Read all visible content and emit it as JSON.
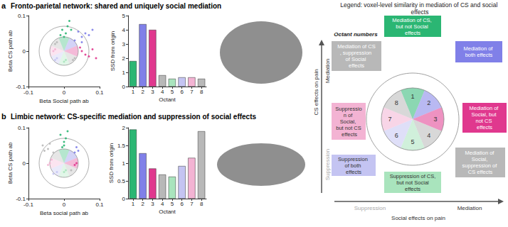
{
  "panels": [
    {
      "letter": "a",
      "title": "Fronto-parietal network: shared and uniquely social mediation"
    },
    {
      "letter": "b",
      "title": "Limbic network: CS-specific mediation and suppression of social effects"
    }
  ],
  "chart_data": [
    {
      "type": "scatter",
      "x_label": "Beta Social path ab",
      "y_label": "Beta CS path ab",
      "xlim": [
        -0.1,
        0.1
      ],
      "xticks": [
        -0.1,
        0,
        0.1
      ],
      "ylim": [
        -0.1,
        0.1
      ],
      "yticks": [
        -0.1,
        0,
        0.1
      ],
      "grid": false,
      "circles": [
        0.04,
        0.07
      ],
      "series": [
        {
          "color": "#2bb673",
          "x": [
            0.005,
            0.01,
            -0.005,
            0.015,
            0,
            0.02,
            -0.01
          ],
          "y": [
            0.05,
            0.07,
            0.06,
            0.085,
            0.04,
            0.06,
            0.045
          ]
        },
        {
          "color": "#8080e8",
          "x": [
            0.03,
            0.05,
            0.06,
            0.07,
            0.04,
            0.08,
            0.05
          ],
          "y": [
            0.03,
            0.04,
            0.05,
            0.045,
            0.055,
            0.06,
            0.025
          ]
        },
        {
          "color": "#e0388e",
          "x": [
            0.05,
            0.06,
            0.08,
            0.09,
            0.07,
            0.045
          ],
          "y": [
            0,
            -0.01,
            0.005,
            -0.02,
            -0.015,
            0.01
          ]
        },
        {
          "color": "#b8b8b8",
          "x": [
            0.025,
            0.03
          ],
          "y": [
            -0.025,
            -0.02
          ]
        },
        {
          "color": "#a9e4bd",
          "x": [
            0,
            0.005
          ],
          "y": [
            -0.03,
            -0.025
          ]
        },
        {
          "color": "#c4c4f2",
          "x": [
            -0.02,
            -0.025
          ],
          "y": [
            -0.02,
            -0.025
          ]
        },
        {
          "color": "#f3b3d3",
          "x": [
            -0.03,
            -0.025
          ],
          "y": [
            0,
            0.005
          ]
        },
        {
          "color": "#b8b8b8",
          "x": [
            -0.02,
            -0.025
          ],
          "y": [
            0.025,
            0.02
          ]
        }
      ]
    },
    {
      "type": "bar",
      "x_label": "Octant",
      "y_label": "SSD from origin",
      "categories": [
        "1",
        "2",
        "3",
        "4",
        "5",
        "6",
        "7",
        "8"
      ],
      "values": [
        1.8,
        4.4,
        4.0,
        0.8,
        0.55,
        0.65,
        0.65,
        0.55
      ],
      "colors": [
        "#2bb673",
        "#8080e8",
        "#e0388e",
        "#b8b8b8",
        "#a9e4bd",
        "#c4c4f2",
        "#f3b3d3",
        "#b8b8b8"
      ],
      "ylim": [
        0,
        5
      ],
      "yticks": [
        0,
        1,
        2,
        3,
        4,
        5
      ],
      "grid": false
    },
    {
      "type": "scatter",
      "x_label": "Beta social path ab",
      "y_label": "Beta CS path ab",
      "xlim": [
        -0.1,
        0.1
      ],
      "xticks": [
        -0.1,
        0,
        0.1
      ],
      "ylim": [
        -0.1,
        0.1
      ],
      "yticks": [
        -0.1,
        0,
        0.1
      ],
      "grid": false,
      "circles": [
        0.04,
        0.07
      ],
      "series": [
        {
          "color": "#2bb673",
          "x": [
            0,
            0.005,
            -0.01,
            0.01,
            0,
            -0.005
          ],
          "y": [
            0.05,
            0.07,
            0.08,
            0.09,
            0.06,
            0.045
          ]
        },
        {
          "color": "#8080e8",
          "x": [
            0.03,
            0.04,
            0.035
          ],
          "y": [
            0.03,
            0.035,
            0.045
          ]
        },
        {
          "color": "#e0388e",
          "x": [
            0.035,
            0.03
          ],
          "y": [
            0,
            -0.005
          ]
        },
        {
          "color": "#b8b8b8",
          "x": [
            0.02
          ],
          "y": [
            -0.02
          ]
        },
        {
          "color": "#a9e4bd",
          "x": [
            0,
            0.005
          ],
          "y": [
            -0.025,
            -0.02
          ]
        },
        {
          "color": "#c4c4f2",
          "x": [
            -0.02,
            -0.03
          ],
          "y": [
            -0.025,
            -0.03
          ]
        },
        {
          "color": "#f3b3d3",
          "x": [
            -0.04,
            -0.035,
            -0.045
          ],
          "y": [
            0,
            0.01,
            -0.005
          ]
        },
        {
          "color": "#b8b8b8",
          "x": [
            -0.03,
            -0.045,
            -0.06,
            -0.04,
            -0.055
          ],
          "y": [
            0.03,
            0.04,
            0.05,
            0.055,
            0.035
          ]
        }
      ]
    },
    {
      "type": "bar",
      "x_label": "Octant",
      "y_label": "SSD from origin",
      "categories": [
        "1",
        "2",
        "3",
        "4",
        "5",
        "6",
        "7",
        "8"
      ],
      "values": [
        1.95,
        1.28,
        0.85,
        0.68,
        0.62,
        0.92,
        1.15,
        1.9
      ],
      "colors": [
        "#2bb673",
        "#8080e8",
        "#e0388e",
        "#b8b8b8",
        "#a9e4bd",
        "#c4c4f2",
        "#f3b3d3",
        "#b8b8b8"
      ],
      "ylim": [
        0,
        2
      ],
      "yticks": [
        0,
        0.5,
        1,
        1.5,
        2
      ],
      "grid": false
    }
  ],
  "legend_diagram": {
    "title": "Legend: voxel-level similarity in mediation of CS and social effects",
    "octant_numbers_label": "Octant numbers",
    "octants": [
      {
        "number": 1,
        "label": "Mediation of CS, but not Social effects",
        "color": "#2bb673"
      },
      {
        "number": 2,
        "label": "Mediation of both effects",
        "color": "#8080e8"
      },
      {
        "number": 3,
        "label": "Mediation of Social, but not CS effects",
        "color": "#e0388e"
      },
      {
        "number": 4,
        "label": "Mediation of Social, suppression of CS effects",
        "color": "#b8b8b8"
      },
      {
        "number": 5,
        "label": "Suppression of CS, but not Social effects",
        "color": "#a9e4bd"
      },
      {
        "number": 6,
        "label": "Suppression of both effects",
        "color": "#c4c4f2"
      },
      {
        "number": 7,
        "label": "Suppression of Social, but not CS effects",
        "color": "#f3b3d3"
      },
      {
        "number": 8,
        "label": "Mediation of CS, suppression of Social effects",
        "color": "#b8b8b8"
      }
    ],
    "y_axis": {
      "title": "CS effects on pain",
      "positive": "Mediation",
      "negative": "Suppression"
    },
    "x_axis": {
      "title": "Social effects on pain",
      "positive": "Mediation",
      "negative": "Suppression"
    }
  }
}
